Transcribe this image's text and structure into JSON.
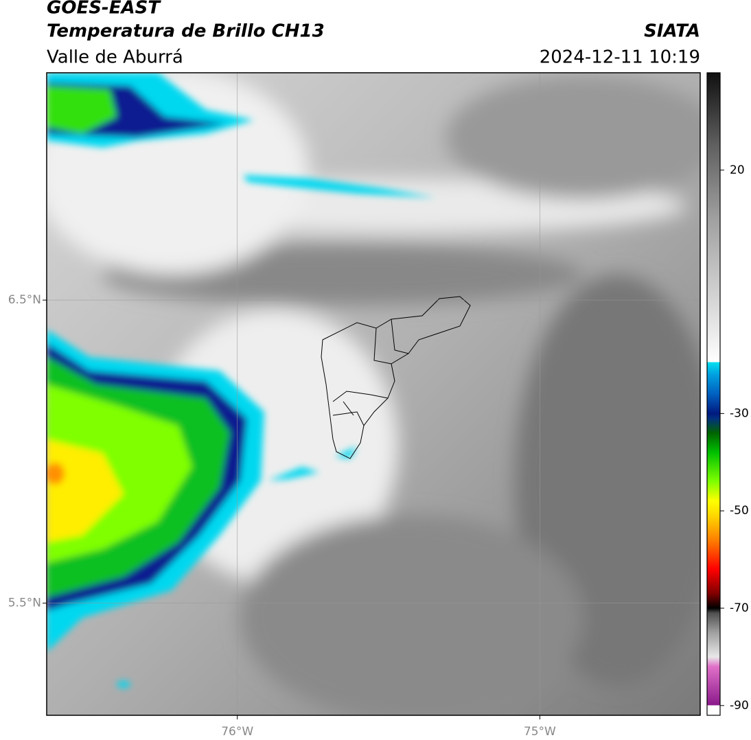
{
  "header": {
    "title": "GOES-EAST",
    "subtitle": "Temperatura de Brillo CH13",
    "region": "Valle de Aburrá",
    "source": "SIATA",
    "datetime": "2024-12-11 10:19"
  },
  "map": {
    "xlim": [
      -76.63,
      -74.47
    ],
    "ylim": [
      5.13,
      7.25
    ],
    "xticks": [
      {
        "value": -76,
        "label": "76°W"
      },
      {
        "value": -75,
        "label": "75°W"
      }
    ],
    "yticks": [
      {
        "value": 6.5,
        "label": "6.5°N"
      },
      {
        "value": 5.5,
        "label": "5.5°N"
      }
    ],
    "grid": true
  },
  "colorbar": {
    "clim": [
      -92,
      40
    ],
    "ticks": [
      20,
      -30,
      -50,
      -70,
      -90
    ],
    "stops": [
      [
        -92,
        "#ffffff"
      ],
      [
        -90,
        "#ffffff"
      ],
      [
        -89.9,
        "#8b1a8b"
      ],
      [
        -82,
        "#e070c8"
      ],
      [
        -80,
        "#e8e8e8"
      ],
      [
        -75,
        "#a0a0a0"
      ],
      [
        -71,
        "#505050"
      ],
      [
        -70,
        "#000000"
      ],
      [
        -67,
        "#800000"
      ],
      [
        -62,
        "#ff0000"
      ],
      [
        -56,
        "#ff7f00"
      ],
      [
        -51,
        "#ffd700"
      ],
      [
        -48,
        "#ffff00"
      ],
      [
        -44,
        "#7fff00"
      ],
      [
        -38,
        "#00c000"
      ],
      [
        -34,
        "#006400"
      ],
      [
        -31,
        "#003080"
      ],
      [
        -30,
        "#001a80"
      ],
      [
        -26,
        "#0060c0"
      ],
      [
        -22,
        "#00a0e0"
      ],
      [
        -19.5,
        "#00e0f0"
      ],
      [
        -19.4,
        "#ffffff"
      ],
      [
        -10,
        "#e0e0e0"
      ],
      [
        10,
        "#a0a0a0"
      ],
      [
        25,
        "#606060"
      ],
      [
        40,
        "#101010"
      ]
    ]
  }
}
